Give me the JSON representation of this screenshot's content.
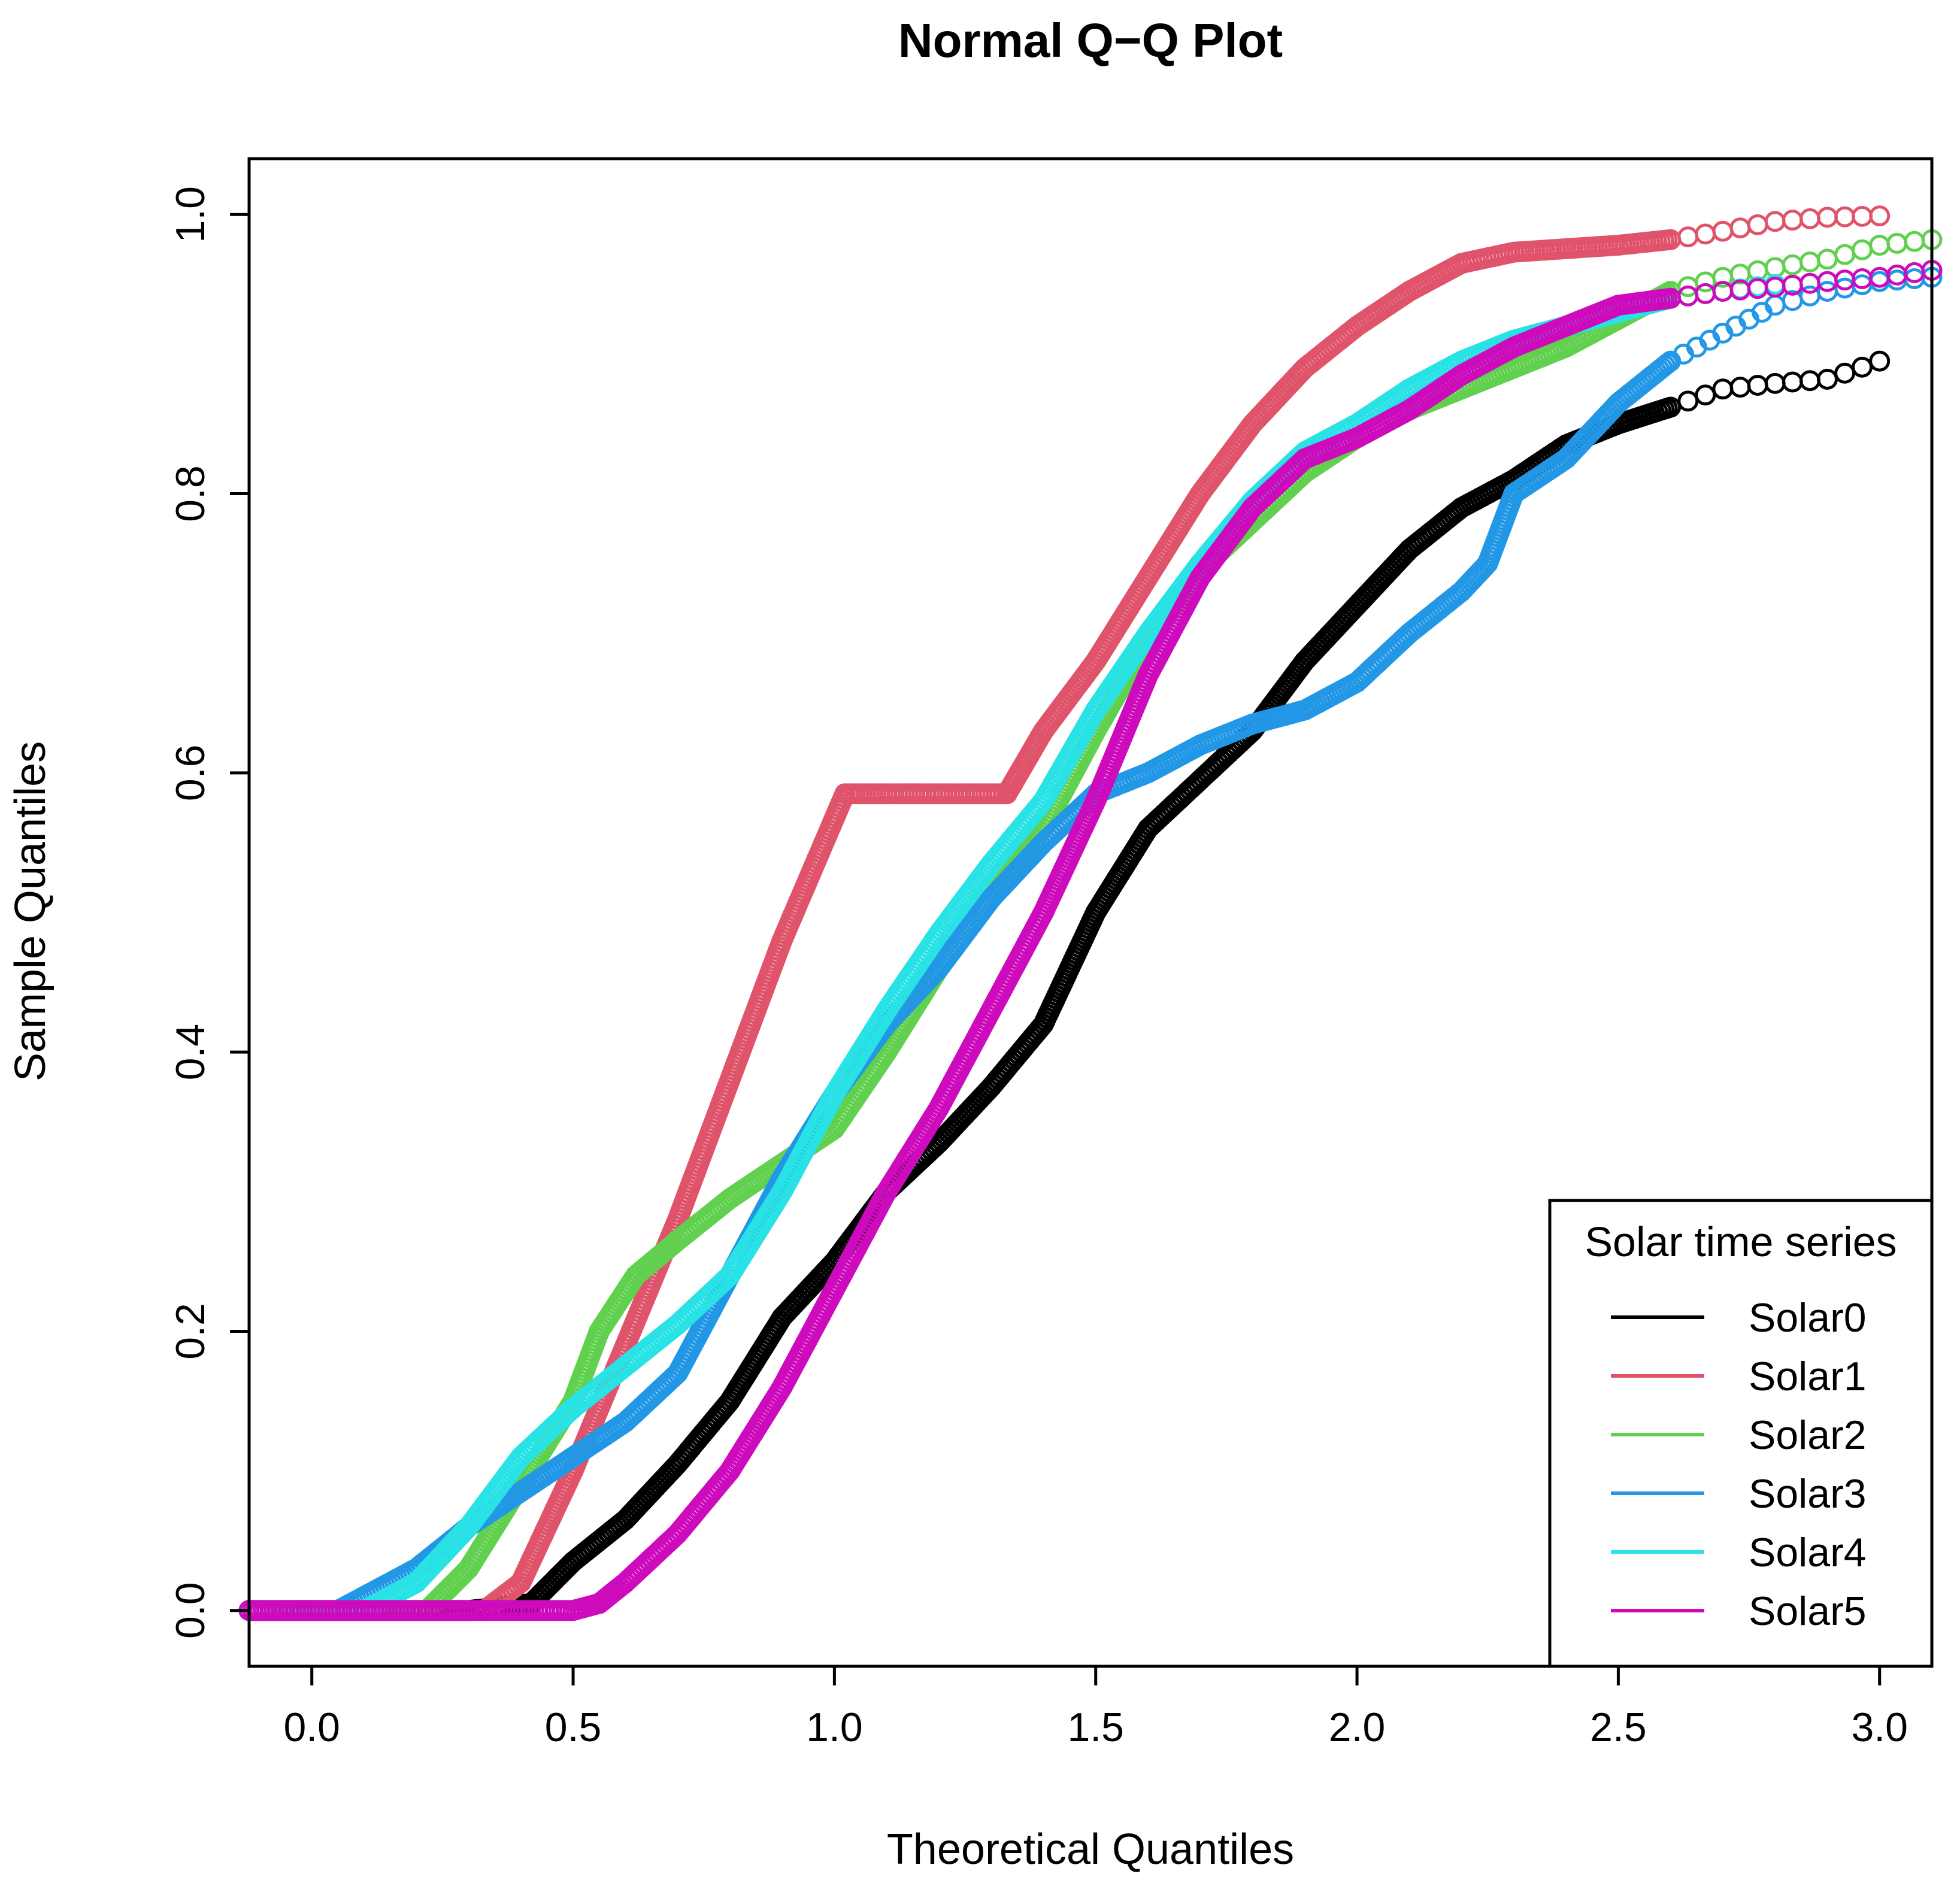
{
  "chart_data": {
    "type": "scatter",
    "title": "Normal Q−Q Plot",
    "xlabel": "Theoretical Quantiles",
    "ylabel": "Sample Quantiles",
    "xlim": [
      -0.12,
      3.1
    ],
    "ylim": [
      -0.04,
      1.04
    ],
    "xticks": [
      0.0,
      0.5,
      1.0,
      1.5,
      2.0,
      2.5,
      3.0
    ],
    "xtick_labels": [
      "0.0",
      "0.5",
      "1.0",
      "1.5",
      "2.0",
      "2.5",
      "3.0"
    ],
    "yticks": [
      0.0,
      0.2,
      0.4,
      0.6,
      0.8,
      1.0
    ],
    "ytick_labels": [
      "0.0",
      "0.2",
      "0.4",
      "0.6",
      "0.8",
      "1.0"
    ],
    "grid": false,
    "legend": {
      "title": "Solar time series",
      "position": "bottom-right"
    },
    "series": [
      {
        "name": "Solar0",
        "color": "#000000",
        "points": [
          [
            -0.12,
            0
          ],
          [
            0.3,
            0
          ],
          [
            0.42,
            0.005
          ],
          [
            0.5,
            0.035
          ],
          [
            0.6,
            0.065
          ],
          [
            0.7,
            0.105
          ],
          [
            0.8,
            0.15
          ],
          [
            0.9,
            0.21
          ],
          [
            1.0,
            0.25
          ],
          [
            1.1,
            0.3
          ],
          [
            1.2,
            0.335
          ],
          [
            1.3,
            0.375
          ],
          [
            1.4,
            0.42
          ],
          [
            1.5,
            0.5
          ],
          [
            1.6,
            0.56
          ],
          [
            1.7,
            0.595
          ],
          [
            1.8,
            0.63
          ],
          [
            1.9,
            0.68
          ],
          [
            2.0,
            0.72
          ],
          [
            2.1,
            0.76
          ],
          [
            2.2,
            0.79
          ],
          [
            2.3,
            0.81
          ],
          [
            2.4,
            0.835
          ],
          [
            2.5,
            0.85
          ],
          [
            2.6,
            0.862
          ],
          [
            2.7,
            0.875
          ],
          [
            2.8,
            0.879
          ],
          [
            2.9,
            0.882
          ],
          [
            3.0,
            0.895
          ]
        ]
      },
      {
        "name": "Solar1",
        "color": "#DF536B",
        "points": [
          [
            -0.12,
            0
          ],
          [
            0.33,
            0
          ],
          [
            0.4,
            0.02
          ],
          [
            0.5,
            0.1
          ],
          [
            0.6,
            0.19
          ],
          [
            0.7,
            0.28
          ],
          [
            0.8,
            0.38
          ],
          [
            0.9,
            0.48
          ],
          [
            1.02,
            0.585
          ],
          [
            1.1,
            0.585
          ],
          [
            1.33,
            0.585
          ],
          [
            1.4,
            0.63
          ],
          [
            1.5,
            0.68
          ],
          [
            1.6,
            0.74
          ],
          [
            1.7,
            0.8
          ],
          [
            1.8,
            0.85
          ],
          [
            1.9,
            0.89
          ],
          [
            2.0,
            0.92
          ],
          [
            2.1,
            0.945
          ],
          [
            2.2,
            0.965
          ],
          [
            2.3,
            0.973
          ],
          [
            2.5,
            0.978
          ],
          [
            2.6,
            0.982
          ],
          [
            2.7,
            0.988
          ],
          [
            2.8,
            0.995
          ],
          [
            2.9,
            0.998
          ],
          [
            3.0,
            0.999
          ]
        ]
      },
      {
        "name": "Solar2",
        "color": "#61D04F",
        "points": [
          [
            -0.12,
            0
          ],
          [
            0.22,
            0
          ],
          [
            0.3,
            0.03
          ],
          [
            0.4,
            0.09
          ],
          [
            0.5,
            0.15
          ],
          [
            0.55,
            0.2
          ],
          [
            0.62,
            0.24
          ],
          [
            0.7,
            0.265
          ],
          [
            0.8,
            0.295
          ],
          [
            0.9,
            0.32
          ],
          [
            1.0,
            0.345
          ],
          [
            1.1,
            0.4
          ],
          [
            1.2,
            0.46
          ],
          [
            1.3,
            0.51
          ],
          [
            1.4,
            0.56
          ],
          [
            1.5,
            0.63
          ],
          [
            1.6,
            0.695
          ],
          [
            1.7,
            0.745
          ],
          [
            1.8,
            0.78
          ],
          [
            1.9,
            0.815
          ],
          [
            2.0,
            0.84
          ],
          [
            2.1,
            0.86
          ],
          [
            2.2,
            0.875
          ],
          [
            2.3,
            0.89
          ],
          [
            2.4,
            0.905
          ],
          [
            2.5,
            0.925
          ],
          [
            2.6,
            0.945
          ],
          [
            2.7,
            0.955
          ],
          [
            2.8,
            0.962
          ],
          [
            2.9,
            0.968
          ],
          [
            3.0,
            0.978
          ],
          [
            3.1,
            0.982
          ]
        ]
      },
      {
        "name": "Solar3",
        "color": "#2297E6",
        "points": [
          [
            -0.12,
            0
          ],
          [
            0.05,
            0
          ],
          [
            0.2,
            0.03
          ],
          [
            0.3,
            0.06
          ],
          [
            0.4,
            0.085
          ],
          [
            0.5,
            0.11
          ],
          [
            0.6,
            0.135
          ],
          [
            0.7,
            0.17
          ],
          [
            0.8,
            0.24
          ],
          [
            0.9,
            0.31
          ],
          [
            1.0,
            0.37
          ],
          [
            1.1,
            0.42
          ],
          [
            1.2,
            0.46
          ],
          [
            1.3,
            0.51
          ],
          [
            1.4,
            0.55
          ],
          [
            1.5,
            0.585
          ],
          [
            1.6,
            0.6
          ],
          [
            1.7,
            0.62
          ],
          [
            1.8,
            0.635
          ],
          [
            1.9,
            0.645
          ],
          [
            2.0,
            0.665
          ],
          [
            2.1,
            0.7
          ],
          [
            2.2,
            0.73
          ],
          [
            2.25,
            0.75
          ],
          [
            2.3,
            0.8
          ],
          [
            2.4,
            0.825
          ],
          [
            2.5,
            0.865
          ],
          [
            2.6,
            0.895
          ],
          [
            2.7,
            0.915
          ],
          [
            2.8,
            0.935
          ],
          [
            2.9,
            0.945
          ],
          [
            3.0,
            0.952
          ],
          [
            3.1,
            0.955
          ]
        ]
      },
      {
        "name": "Solar4",
        "color": "#28E2E5",
        "points": [
          [
            -0.12,
            0
          ],
          [
            0.1,
            0
          ],
          [
            0.2,
            0.02
          ],
          [
            0.3,
            0.06
          ],
          [
            0.4,
            0.11
          ],
          [
            0.5,
            0.145
          ],
          [
            0.6,
            0.175
          ],
          [
            0.7,
            0.205
          ],
          [
            0.8,
            0.24
          ],
          [
            0.9,
            0.3
          ],
          [
            1.0,
            0.37
          ],
          [
            1.1,
            0.43
          ],
          [
            1.2,
            0.485
          ],
          [
            1.3,
            0.535
          ],
          [
            1.4,
            0.58
          ],
          [
            1.5,
            0.645
          ],
          [
            1.6,
            0.7
          ],
          [
            1.7,
            0.75
          ],
          [
            1.8,
            0.795
          ],
          [
            1.9,
            0.83
          ],
          [
            2.0,
            0.85
          ],
          [
            2.1,
            0.875
          ],
          [
            2.2,
            0.895
          ],
          [
            2.3,
            0.91
          ],
          [
            2.4,
            0.92
          ],
          [
            2.5,
            0.93
          ],
          [
            2.6,
            0.94
          ],
          [
            2.7,
            0.945
          ],
          [
            2.8,
            0.95
          ]
        ]
      },
      {
        "name": "Solar5",
        "color": "#CD0BBC",
        "points": [
          [
            -0.12,
            0
          ],
          [
            0.5,
            0
          ],
          [
            0.55,
            0.005
          ],
          [
            0.6,
            0.02
          ],
          [
            0.7,
            0.055
          ],
          [
            0.8,
            0.1
          ],
          [
            0.9,
            0.16
          ],
          [
            1.0,
            0.23
          ],
          [
            1.1,
            0.3
          ],
          [
            1.2,
            0.36
          ],
          [
            1.3,
            0.43
          ],
          [
            1.4,
            0.5
          ],
          [
            1.5,
            0.58
          ],
          [
            1.6,
            0.67
          ],
          [
            1.7,
            0.74
          ],
          [
            1.8,
            0.79
          ],
          [
            1.9,
            0.825
          ],
          [
            2.0,
            0.84
          ],
          [
            2.1,
            0.86
          ],
          [
            2.2,
            0.885
          ],
          [
            2.3,
            0.905
          ],
          [
            2.4,
            0.92
          ],
          [
            2.5,
            0.935
          ],
          [
            2.6,
            0.94
          ],
          [
            2.7,
            0.945
          ],
          [
            2.8,
            0.948
          ],
          [
            2.9,
            0.952
          ],
          [
            3.0,
            0.955
          ],
          [
            3.1,
            0.96
          ]
        ]
      }
    ]
  }
}
